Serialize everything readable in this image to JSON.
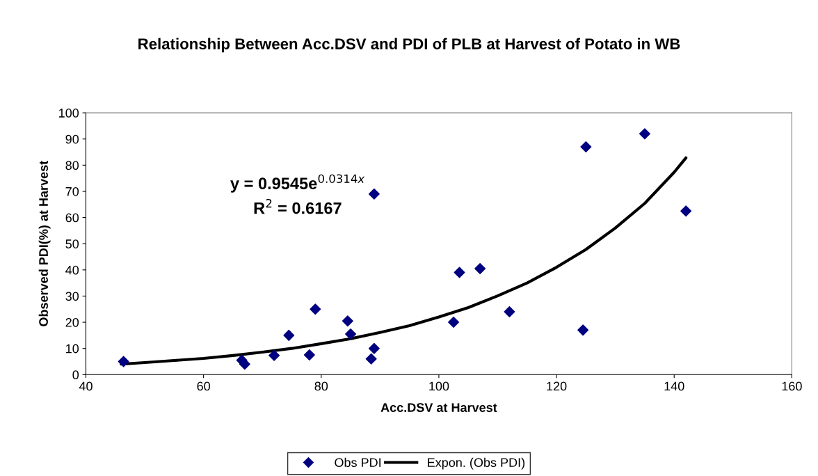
{
  "chart_data": {
    "type": "scatter",
    "title": "Relationship Between Acc.DSV and PDI of PLB at Harvest of Potato in WB",
    "xlabel": "Acc.DSV at Harvest",
    "ylabel": "Observed PDI(%) at Harvest",
    "series": [
      {
        "name": "Obs PDI",
        "color": "#000080",
        "marker": "diamond",
        "x": [
          46.4,
          66.5,
          67,
          72,
          74.5,
          78,
          79,
          84.5,
          85,
          88.5,
          89,
          89,
          102.5,
          103.5,
          107,
          112,
          124.5,
          125,
          135,
          142
        ],
        "values": [
          5,
          5.5,
          4,
          7.3,
          15,
          7.5,
          25,
          20.5,
          15.5,
          6,
          10,
          69,
          20,
          39,
          40.5,
          24,
          17,
          87,
          92,
          62.5
        ]
      },
      {
        "name": "Expon. (Obs PDI)",
        "type": "line",
        "color": "#000000",
        "line_style": "solid",
        "x": [
          46,
          50,
          55,
          60,
          65,
          70,
          75,
          80,
          85,
          90,
          95,
          100,
          105,
          110,
          115,
          120,
          125,
          130,
          135,
          140,
          142
        ],
        "values": [
          4,
          4.6,
          5.4,
          6.2,
          7.3,
          8.6,
          10,
          11.8,
          13.7,
          16.1,
          18.7,
          22,
          25.6,
          30.1,
          35,
          41,
          47.8,
          56,
          65.4,
          77.3,
          82.8
        ]
      }
    ],
    "annotations": [
      "y = 0.9545e$^{0.0314x}$",
      "R$^{2}$ = 0.6167"
    ],
    "xlim": [
      40,
      160
    ],
    "xticks": [
      40,
      60,
      80,
      100,
      120,
      140,
      160
    ],
    "ylim": [
      0,
      100
    ],
    "yticks": [
      0,
      10,
      20,
      30,
      40,
      50,
      60,
      70,
      80,
      90,
      100
    ],
    "grid": false,
    "legend": "bottom"
  }
}
